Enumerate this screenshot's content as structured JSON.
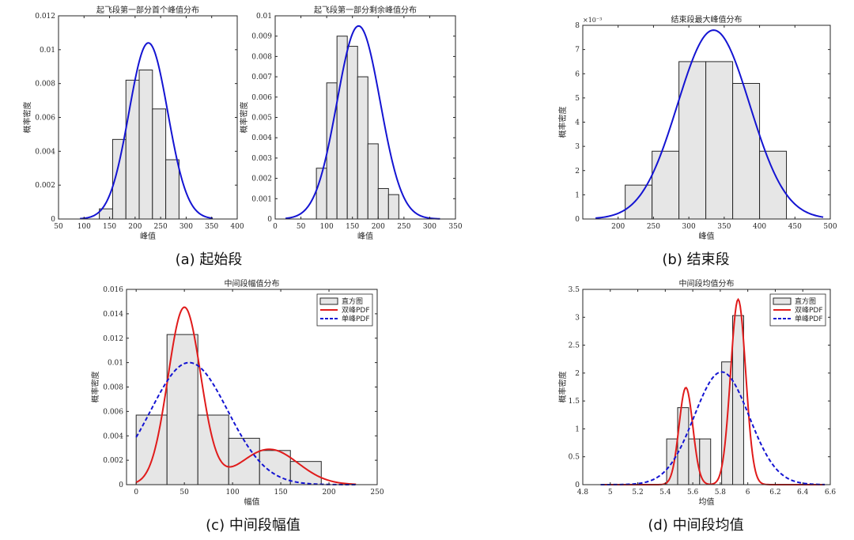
{
  "captions": {
    "a": "(a) 起始段",
    "b": "(b) 结束段",
    "c": "(c) 中间段幅值",
    "d": "(d) 中间段均值"
  },
  "colors": {
    "blue": "#1414d2",
    "red": "#e01b1b",
    "bar_fill": "#e6e6e6",
    "axis": "#262626"
  },
  "chart_data": [
    {
      "id": "a1",
      "type": "bar",
      "title": "起飞段第一部分首个峰值分布",
      "xlabel": "峰值",
      "ylabel": "概率密度",
      "xlim": [
        50,
        400
      ],
      "ylim": [
        0,
        0.012
      ],
      "xticks": [
        50,
        100,
        150,
        200,
        250,
        300,
        350,
        400
      ],
      "yticks": [
        0,
        0.002,
        0.004,
        0.006,
        0.008,
        0.01,
        0.012
      ],
      "xtick_labels": [
        "50",
        "100",
        "150",
        "200",
        "250",
        "300",
        "350",
        "400"
      ],
      "ytick_labels": [
        "0",
        "0.002",
        "0.004",
        "0.006",
        "0.008",
        "0.01",
        "0.012"
      ],
      "bin_edges": [
        130,
        156,
        182,
        208,
        234,
        260,
        286
      ],
      "values": [
        0.0006,
        0.0047,
        0.0082,
        0.0088,
        0.0065,
        0.0035
      ],
      "series": [
        {
          "style": "blue-solid",
          "kind": "normal",
          "mean": 226,
          "sd": 38,
          "peak": 0.0104,
          "x_range": [
            92,
            352
          ]
        }
      ]
    },
    {
      "id": "a2",
      "type": "bar",
      "title": "起飞段第一部分剩余峰值分布",
      "xlabel": "峰值",
      "ylabel": "概率密度",
      "xlim": [
        0,
        350
      ],
      "ylim": [
        0,
        0.01
      ],
      "xticks": [
        0,
        50,
        100,
        150,
        200,
        250,
        300,
        350
      ],
      "yticks": [
        0,
        0.001,
        0.002,
        0.003,
        0.004,
        0.005,
        0.006,
        0.007,
        0.008,
        0.009,
        0.01
      ],
      "xtick_labels": [
        "0",
        "50",
        "100",
        "150",
        "200",
        "250",
        "300",
        "350"
      ],
      "ytick_labels": [
        "0",
        "0.001",
        "0.002",
        "0.003",
        "0.004",
        "0.005",
        "0.006",
        "0.007",
        "0.008",
        "0.009",
        "0.01"
      ],
      "bin_edges": [
        80,
        100,
        120,
        140,
        160,
        180,
        200,
        220,
        240,
        260,
        280
      ],
      "values": [
        0.0025,
        0.0067,
        0.009,
        0.0085,
        0.007,
        0.0037,
        0.0015,
        0.0012,
        0,
        0
      ],
      "series": [
        {
          "style": "blue-solid",
          "kind": "normal",
          "mean": 162,
          "sd": 42,
          "peak": 0.0095,
          "x_range": [
            20,
            320
          ]
        }
      ]
    },
    {
      "id": "b",
      "type": "bar",
      "title": "结束段最大峰值分布",
      "xlabel": "峰值",
      "ylabel": "概率密度",
      "y_exponent": "×10⁻³",
      "xlim": [
        150,
        500
      ],
      "ylim": [
        0,
        8
      ],
      "xticks": [
        200,
        250,
        300,
        350,
        400,
        450,
        500
      ],
      "yticks": [
        0,
        1,
        2,
        3,
        4,
        5,
        6,
        7,
        8
      ],
      "xtick_labels": [
        "200",
        "250",
        "300",
        "350",
        "400",
        "450",
        "500"
      ],
      "ytick_labels": [
        "0",
        "1",
        "2",
        "3",
        "4",
        "5",
        "6",
        "7",
        "8"
      ],
      "bin_edges": [
        210,
        248,
        286,
        324,
        362,
        400,
        438
      ],
      "values": [
        1.4,
        2.8,
        6.5,
        6.5,
        5.6,
        2.8
      ],
      "series": [
        {
          "style": "blue-solid",
          "kind": "normal",
          "mean": 335,
          "sd": 51,
          "peak": 7.8,
          "x_range": [
            168,
            490
          ]
        }
      ]
    },
    {
      "id": "c",
      "type": "bar",
      "title": "中间段幅值分布",
      "xlabel": "幅值",
      "ylabel": "概率密度",
      "xlim": [
        -10,
        250
      ],
      "ylim": [
        0,
        0.016
      ],
      "xticks": [
        0,
        50,
        100,
        150,
        200,
        250
      ],
      "yticks": [
        0,
        0.002,
        0.004,
        0.006,
        0.008,
        0.01,
        0.012,
        0.014,
        0.016
      ],
      "xtick_labels": [
        "0",
        "50",
        "100",
        "150",
        "200",
        "250"
      ],
      "ytick_labels": [
        "0",
        "0.002",
        "0.004",
        "0.006",
        "0.008",
        "0.01",
        "0.012",
        "0.014",
        "0.016"
      ],
      "bin_edges": [
        0,
        32,
        64,
        96,
        128,
        160,
        192
      ],
      "values": [
        0.0057,
        0.0123,
        0.0057,
        0.0038,
        0.0028,
        0.0019
      ],
      "legend": [
        "直方图",
        "双峰PDF",
        "单峰PDF"
      ],
      "series": [
        {
          "name": "双峰PDF",
          "style": "red-solid",
          "kind": "mixture",
          "components": [
            {
              "mean": 50,
              "sd": 17,
              "peak": 0.0145
            },
            {
              "mean": 138,
              "sd": 30,
              "peak": 0.0029
            }
          ],
          "x_range": [
            0,
            228
          ]
        },
        {
          "name": "单峰PDF",
          "style": "blue-dashed",
          "kind": "normal",
          "mean": 55,
          "sd": 40,
          "peak": 0.01,
          "x_range": [
            0,
            228
          ]
        }
      ]
    },
    {
      "id": "d",
      "type": "bar",
      "title": "中间段均值分布",
      "xlabel": "均值",
      "ylabel": "概率密度",
      "xlim": [
        4.8,
        6.6
      ],
      "ylim": [
        0,
        3.5
      ],
      "xticks": [
        4.8,
        5.0,
        5.2,
        5.4,
        5.6,
        5.8,
        6.0,
        6.2,
        6.4,
        6.6
      ],
      "yticks": [
        0,
        0.5,
        1,
        1.5,
        2,
        2.5,
        3,
        3.5
      ],
      "xtick_labels": [
        "4.8",
        "5",
        "5.2",
        "5.4",
        "5.6",
        "5.8",
        "6",
        "6.2",
        "6.4",
        "6.6"
      ],
      "ytick_labels": [
        "0",
        "0.5",
        "1",
        "1.5",
        "2",
        "2.5",
        "3",
        "3.5"
      ],
      "bin_edges": [
        5.41,
        5.49,
        5.57,
        5.65,
        5.73,
        5.81,
        5.89,
        5.97,
        6.05
      ],
      "values": [
        0.82,
        1.38,
        0.82,
        0.82,
        0,
        2.2,
        3.03,
        0
      ],
      "legend": [
        "直方图",
        "双峰PDF",
        "单峰PDF"
      ],
      "series": [
        {
          "name": "双峰PDF",
          "style": "red-solid",
          "kind": "mixture",
          "components": [
            {
              "mean": 5.55,
              "sd": 0.05,
              "peak": 1.74
            },
            {
              "mean": 5.93,
              "sd": 0.055,
              "peak": 3.32
            }
          ],
          "x_range": [
            4.93,
            6.56
          ]
        },
        {
          "name": "单峰PDF",
          "style": "blue-dashed",
          "kind": "normal",
          "mean": 5.81,
          "sd": 0.2,
          "peak": 2.02,
          "x_range": [
            4.93,
            6.56
          ]
        }
      ]
    }
  ]
}
